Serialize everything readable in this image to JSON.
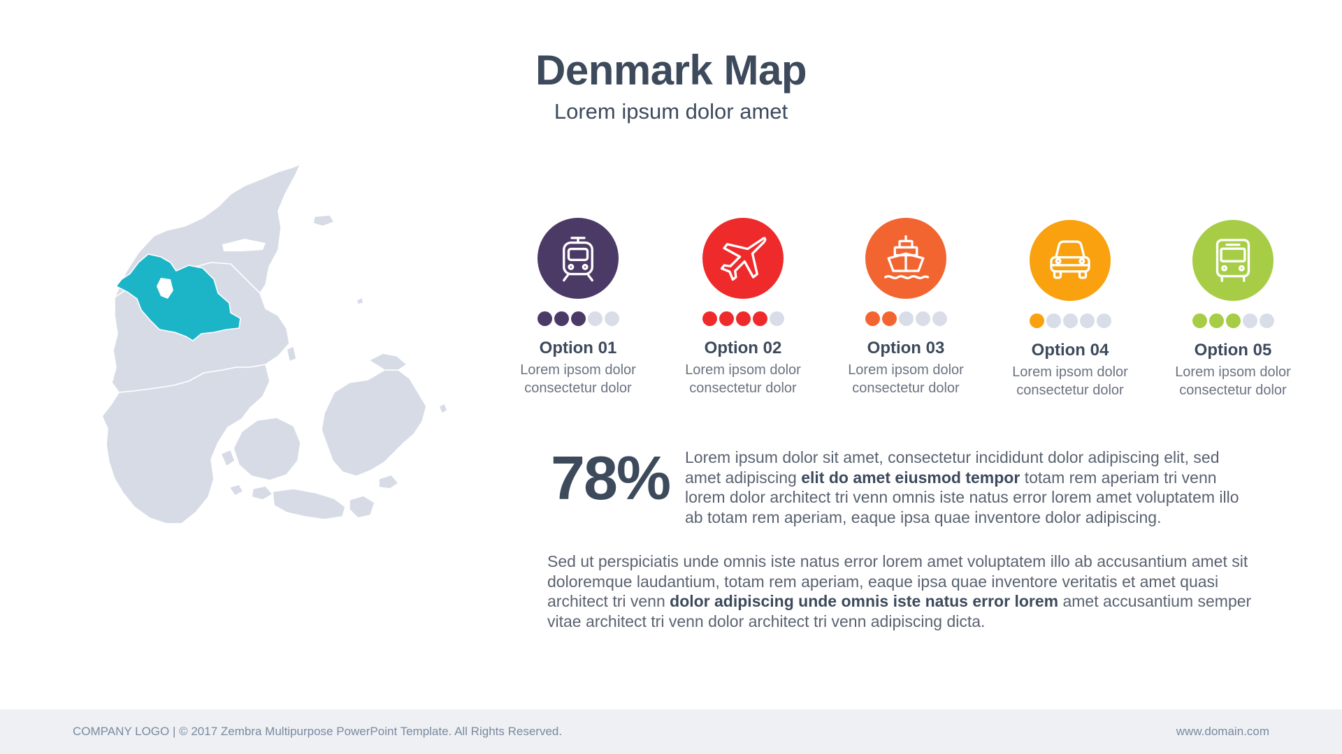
{
  "header": {
    "title": "Denmark Map",
    "subtitle": "Lorem ipsum dolor amet"
  },
  "map": {
    "country": "Denmark",
    "base_color": "#d6dbe6",
    "highlight_color": "#1cb5c7"
  },
  "options": [
    {
      "title": "Option 01",
      "desc1": "Lorem ipsom dolor",
      "desc2": "consectetur dolor",
      "icon": "tram-icon",
      "color": "#4b3a66",
      "rating": 3,
      "max": 5
    },
    {
      "title": "Option 02",
      "desc1": "Lorem ipsom dolor",
      "desc2": "consectetur dolor",
      "icon": "airplane-icon",
      "color": "#ee2a2a",
      "rating": 4,
      "max": 5
    },
    {
      "title": "Option 03",
      "desc1": "Lorem ipsom dolor",
      "desc2": "consectetur dolor",
      "icon": "ship-icon",
      "color": "#f26530",
      "rating": 2,
      "max": 5
    },
    {
      "title": "Option 04",
      "desc1": "Lorem ipsom dolor",
      "desc2": "consectetur dolor",
      "icon": "car-icon",
      "color": "#f9a10f",
      "rating": 1,
      "max": 5
    },
    {
      "title": "Option 05",
      "desc1": "Lorem ipsom dolor",
      "desc2": "consectetur dolor",
      "icon": "bus-icon",
      "color": "#a6cd45",
      "rating": 3,
      "max": 5
    }
  ],
  "stat": {
    "value": "78%",
    "p1_a": "Lorem ipsum dolor sit amet, consectetur  incididunt dolor  adipiscing elit, sed amet adipiscing ",
    "p1_b": "elit do amet  eiusmod tempor",
    "p1_c": " totam rem aperiam tri venn lorem dolor architect tri venn   omnis iste natus error lorem  amet voluptatem illo ab totam rem aperiam, eaque ipsa quae inventore dolor adipiscing."
  },
  "body": {
    "p2_a": "Sed ut perspiciatis unde omnis iste natus error lorem  amet voluptatem illo ab accusantium amet sit doloremque laudantium, totam rem aperiam, eaque ipsa quae inventore veritatis et amet quasi architect tri venn ",
    "p2_b": "dolor adipiscing unde omnis iste natus error lorem",
    "p2_c": "  amet accusantium semper vitae architect tri venn dolor architect tri venn adipiscing  dicta."
  },
  "footer": {
    "left": "COMPANY LOGO | © 2017 Zembra Multipurpose PowerPoint Template. All Rights Reserved.",
    "right": "www.domain.com"
  }
}
